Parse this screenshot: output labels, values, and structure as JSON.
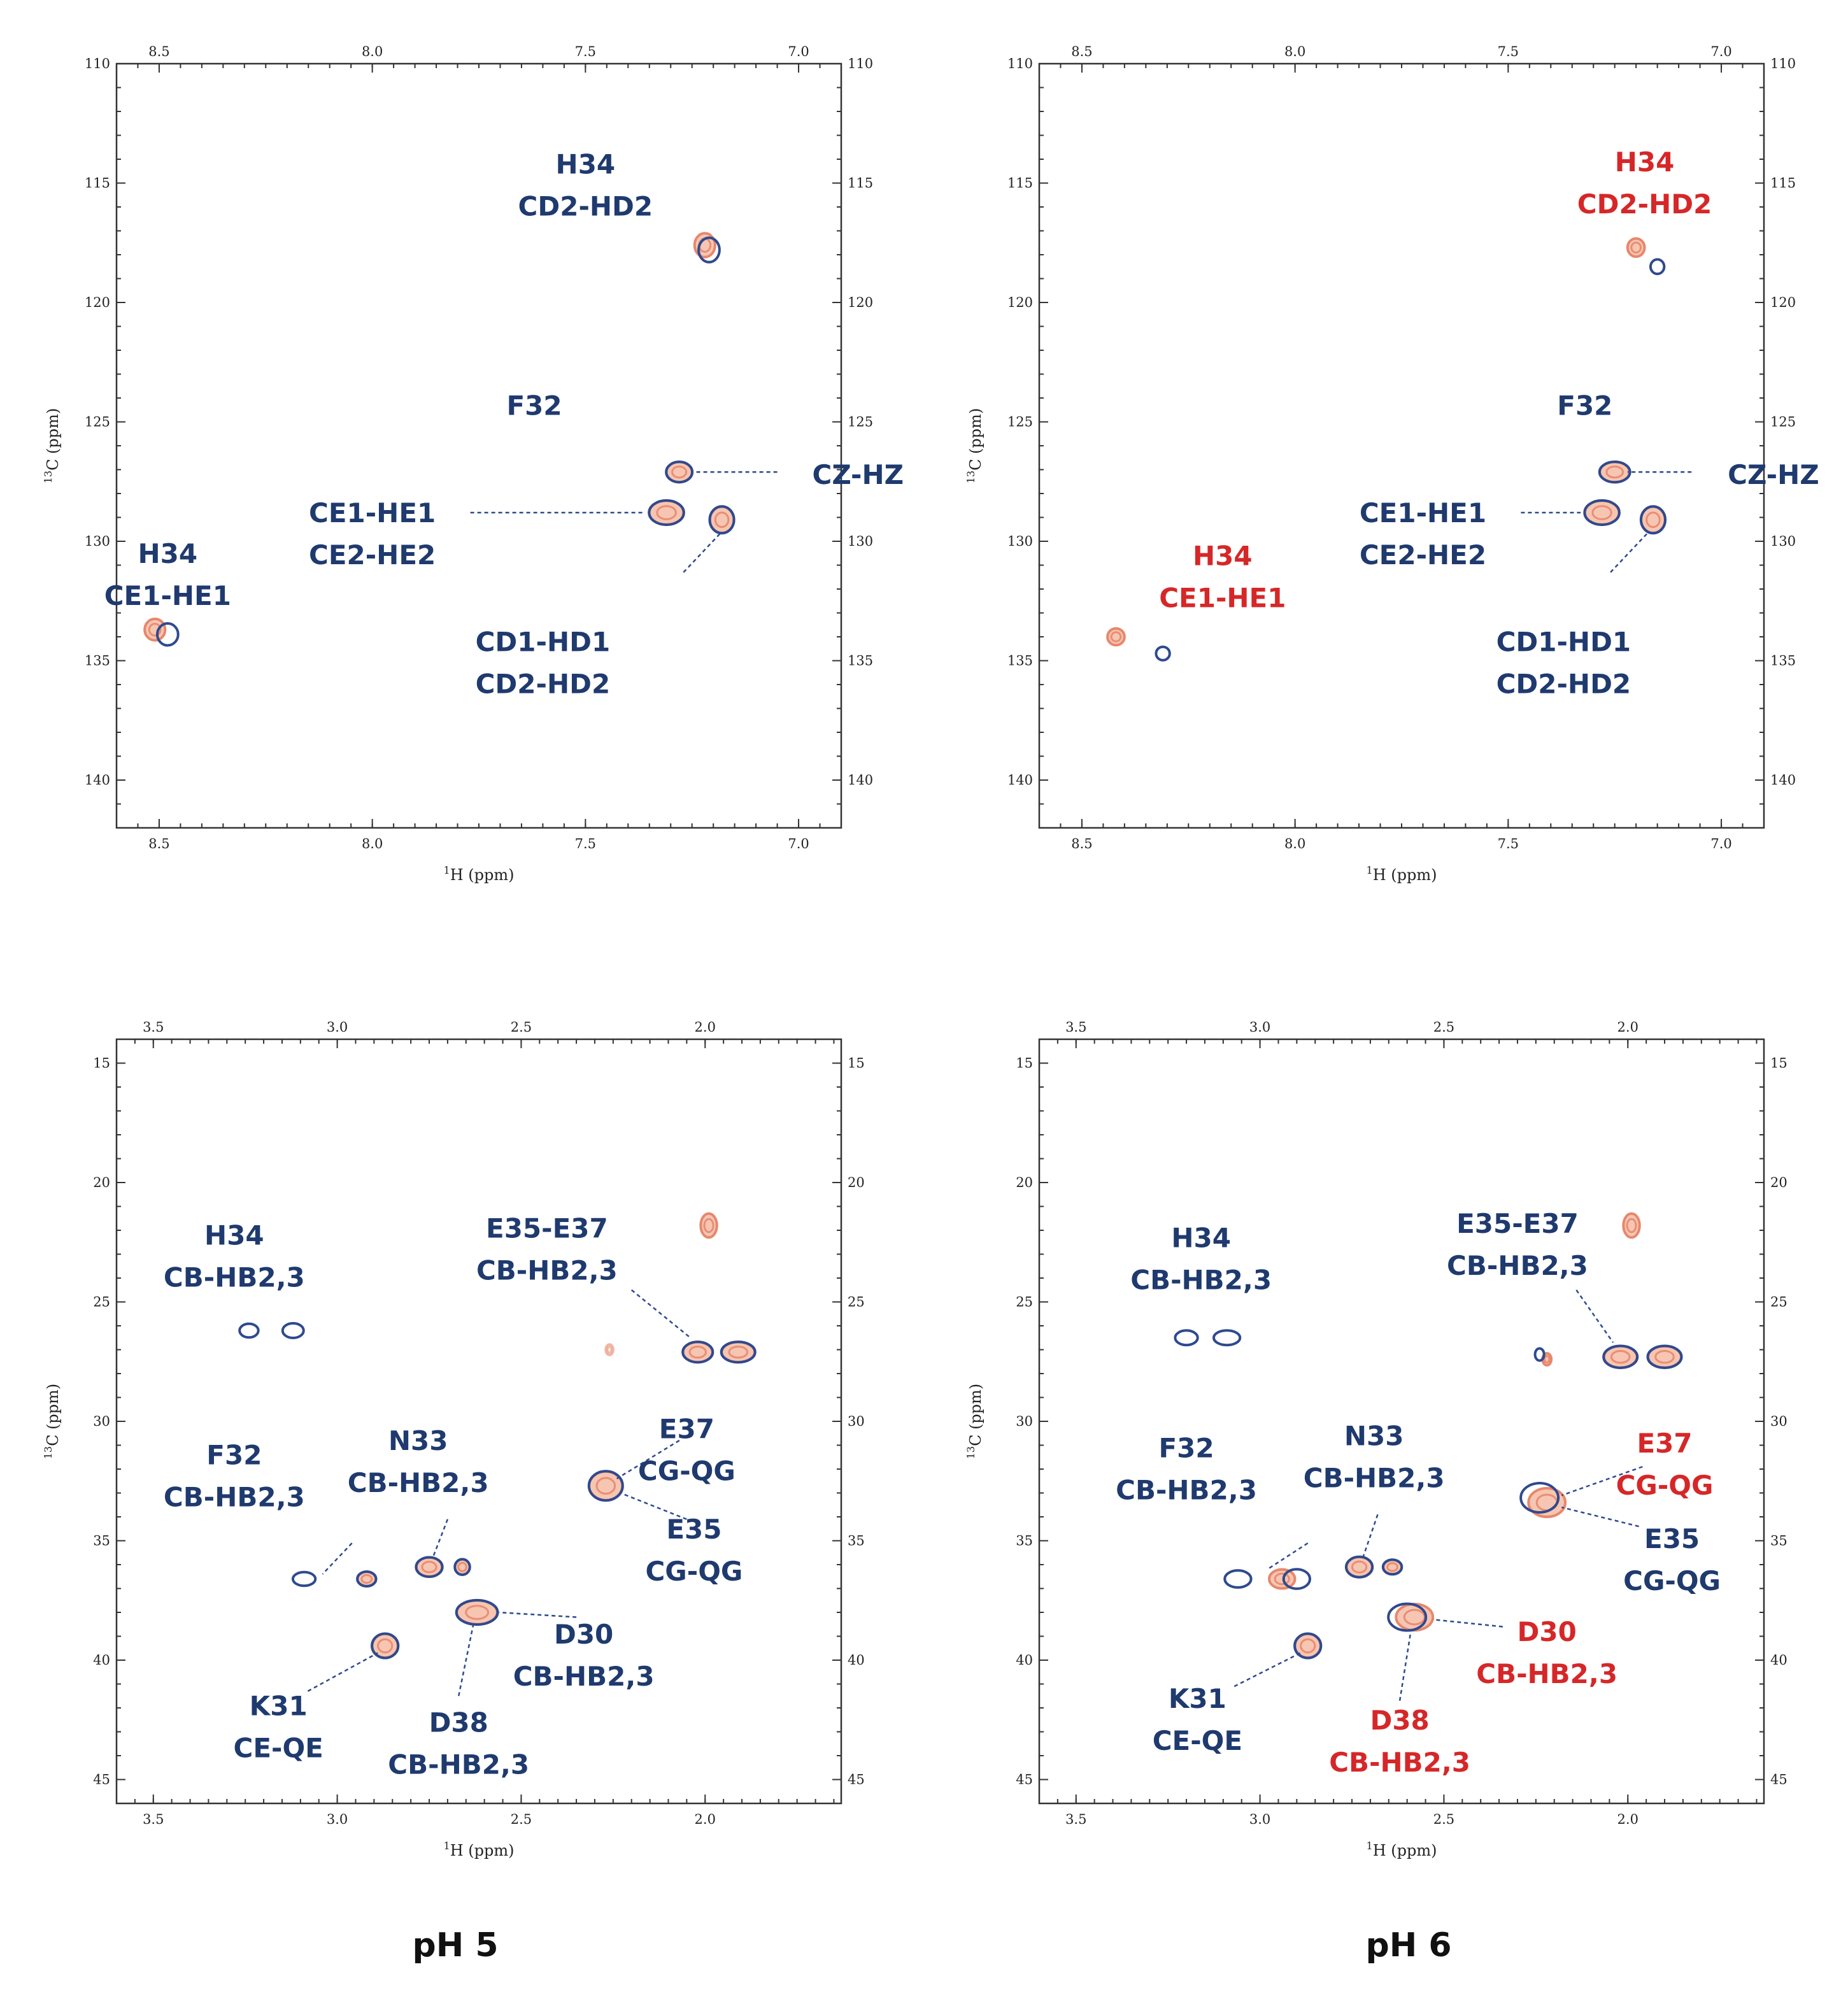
{
  "colors": {
    "ref": "#e8876b",
    "ref_fill": "#f6c6b3",
    "sample": "#2e4a8f",
    "label_default": "#1f3a6e",
    "label_changed": "#d62728",
    "leader": "#2e4a8f"
  },
  "figure_labels": {
    "ph5": "pH 5",
    "ph6": "pH 6"
  },
  "chart_data": [
    {
      "id": "aromatic_ph5",
      "type": "scatter",
      "subtype": "2D NMR HSQC overlay",
      "xlabel_sup": "1",
      "xlabel": "H  (ppm)",
      "ylabel_sup": "13",
      "ylabel": "C  (ppm)",
      "xlim": [
        8.6,
        6.9
      ],
      "ylim": [
        110,
        142
      ],
      "x_reversed": true,
      "y_reversed": true,
      "xticks": [
        8.5,
        8.0,
        7.5,
        7.0
      ],
      "xtick_labels": [
        "8.5",
        "8.0",
        "7.5",
        "7.0"
      ],
      "yticks": [
        110,
        115,
        120,
        125,
        130,
        135,
        140
      ],
      "ytick_labels": [
        "110",
        "115",
        "120",
        "125",
        "130",
        "135",
        "140"
      ],
      "peaks": [
        {
          "ref": [
            7.22,
            117.6
          ],
          "sample": [
            7.21,
            117.8
          ],
          "rx": 0.024,
          "ry": 0.5
        },
        {
          "ref": [
            7.28,
            127.1
          ],
          "sample": [
            7.28,
            127.1
          ],
          "rx": 0.03,
          "ry": 0.42
        },
        {
          "ref": [
            7.31,
            128.8
          ],
          "sample": [
            7.31,
            128.8
          ],
          "rx": 0.04,
          "ry": 0.5
        },
        {
          "ref": [
            7.18,
            129.1
          ],
          "sample": [
            7.18,
            129.1
          ],
          "rx": 0.028,
          "ry": 0.55
        },
        {
          "ref": [
            8.51,
            133.7
          ],
          "sample": [
            8.48,
            133.9
          ],
          "rx": 0.024,
          "ry": 0.45
        }
      ],
      "annotations": [
        {
          "lines": [
            "H34",
            "CD2-HD2"
          ],
          "x": 7.5,
          "y": 114.6,
          "color": "label_default"
        },
        {
          "lines": [
            "F32"
          ],
          "x": 7.62,
          "y": 124.7,
          "color": "label_default"
        },
        {
          "lines": [
            "CZ-HZ"
          ],
          "x": 6.95,
          "y": 127.6,
          "color": "label_default",
          "anchor": "start",
          "dx": -12
        },
        {
          "lines": [
            "CE1-HE1",
            "CE2-HE2"
          ],
          "x": 8.0,
          "y": 129.2,
          "color": "label_default"
        },
        {
          "lines": [
            "H34",
            "CE1-HE1"
          ],
          "x": 8.48,
          "y": 130.9,
          "color": "label_default"
        },
        {
          "lines": [
            "CD1-HD1",
            "CD2-HD2"
          ],
          "x": 7.6,
          "y": 134.6,
          "color": "label_default"
        }
      ],
      "leaders": [
        {
          "from": [
            7.05,
            127.1
          ],
          "to": [
            7.25,
            127.1
          ]
        },
        {
          "from": [
            7.77,
            128.8
          ],
          "to": [
            7.36,
            128.8
          ]
        },
        {
          "from": [
            7.27,
            131.3
          ],
          "to": [
            7.18,
            129.6
          ]
        }
      ]
    },
    {
      "id": "aromatic_ph6",
      "type": "scatter",
      "subtype": "2D NMR HSQC overlay",
      "xlabel_sup": "1",
      "xlabel": "H  (ppm)",
      "ylabel_sup": "13",
      "ylabel": "C  (ppm)",
      "xlim": [
        8.6,
        6.9
      ],
      "ylim": [
        110,
        142
      ],
      "x_reversed": true,
      "y_reversed": true,
      "xticks": [
        8.5,
        8.0,
        7.5,
        7.0
      ],
      "xtick_labels": [
        "8.5",
        "8.0",
        "7.5",
        "7.0"
      ],
      "yticks": [
        110,
        115,
        120,
        125,
        130,
        135,
        140
      ],
      "ytick_labels": [
        "110",
        "115",
        "120",
        "125",
        "130",
        "135",
        "140"
      ],
      "peaks": [
        {
          "ref": [
            7.2,
            117.7
          ],
          "sample": [
            7.15,
            118.5
          ],
          "rx": 0.02,
          "ry": 0.38,
          "ref_only_fill": true
        },
        {
          "ref": [
            7.25,
            127.1
          ],
          "sample": [
            7.25,
            127.1
          ],
          "rx": 0.035,
          "ry": 0.42
        },
        {
          "ref": [
            7.28,
            128.8
          ],
          "sample": [
            7.28,
            128.8
          ],
          "rx": 0.04,
          "ry": 0.5
        },
        {
          "ref": [
            7.16,
            129.1
          ],
          "sample": [
            7.16,
            129.1
          ],
          "rx": 0.028,
          "ry": 0.55
        },
        {
          "ref": [
            8.42,
            134.0
          ],
          "sample": [
            8.31,
            134.7
          ],
          "rx": 0.02,
          "ry": 0.35,
          "ref_only_fill": true
        }
      ],
      "annotations": [
        {
          "lines": [
            "H34",
            "CD2-HD2"
          ],
          "x": 7.18,
          "y": 114.5,
          "color": "label_changed"
        },
        {
          "lines": [
            "F32"
          ],
          "x": 7.32,
          "y": 124.7,
          "color": "label_default"
        },
        {
          "lines": [
            "CZ-HZ"
          ],
          "x": 6.97,
          "y": 127.6,
          "color": "label_default",
          "anchor": "start",
          "dx": -10
        },
        {
          "lines": [
            "CE1-HE1",
            "CE2-HE2"
          ],
          "x": 7.7,
          "y": 129.2,
          "color": "label_default"
        },
        {
          "lines": [
            "H34",
            "CE1-HE1"
          ],
          "x": 8.17,
          "y": 131.0,
          "color": "label_changed"
        },
        {
          "lines": [
            "CD1-HD1",
            "CD2-HD2"
          ],
          "x": 7.37,
          "y": 134.6,
          "color": "label_default"
        }
      ],
      "leaders": [
        {
          "from": [
            7.07,
            127.1
          ],
          "to": [
            7.22,
            127.1
          ]
        },
        {
          "from": [
            7.47,
            128.8
          ],
          "to": [
            7.33,
            128.8
          ]
        },
        {
          "from": [
            7.26,
            131.3
          ],
          "to": [
            7.17,
            129.6
          ]
        }
      ]
    },
    {
      "id": "aliphatic_ph5",
      "type": "scatter",
      "subtype": "2D NMR HSQC overlay",
      "xlabel_sup": "1",
      "xlabel": "H  (ppm)",
      "ylabel_sup": "13",
      "ylabel": "C  (ppm)",
      "xlim": [
        3.6,
        1.63
      ],
      "ylim": [
        14,
        46
      ],
      "x_reversed": true,
      "y_reversed": true,
      "xticks": [
        3.5,
        3.0,
        2.5,
        2.0
      ],
      "xtick_labels": [
        "3.5",
        "3.0",
        "2.5",
        "2.0"
      ],
      "yticks": [
        15,
        20,
        25,
        30,
        35,
        40,
        45
      ],
      "ytick_labels": [
        "15",
        "20",
        "25",
        "30",
        "35",
        "40",
        "45"
      ],
      "peaks": [
        {
          "ref": [
            1.99,
            21.8
          ],
          "sample": [
            1.99,
            21.8
          ],
          "rx": 0.022,
          "ry": 0.5,
          "ref_only": true
        },
        {
          "ref": [
            2.02,
            27.1
          ],
          "sample": [
            2.02,
            27.1
          ],
          "rx": 0.04,
          "ry": 0.42
        },
        {
          "ref": [
            1.91,
            27.1
          ],
          "sample": [
            1.91,
            27.1
          ],
          "rx": 0.045,
          "ry": 0.42
        },
        {
          "ref": [
            2.26,
            27.0
          ],
          "sample": [
            2.26,
            27.0
          ],
          "rx": 0.01,
          "ry": 0.22,
          "ref_only": true,
          "faint": true
        },
        {
          "ref": [
            3.24,
            26.2
          ],
          "sample": [
            3.24,
            26.2
          ],
          "rx": 0.025,
          "ry": 0.28,
          "sample_only": true
        },
        {
          "ref": [
            3.12,
            26.2
          ],
          "sample": [
            3.12,
            26.2
          ],
          "rx": 0.028,
          "ry": 0.3,
          "sample_only": true
        },
        {
          "ref": [
            2.27,
            32.7
          ],
          "sample": [
            2.27,
            32.7
          ],
          "rx": 0.045,
          "ry": 0.6
        },
        {
          "ref": [
            2.75,
            36.1
          ],
          "sample": [
            2.75,
            36.1
          ],
          "rx": 0.035,
          "ry": 0.4
        },
        {
          "ref": [
            2.66,
            36.1
          ],
          "sample": [
            2.66,
            36.1
          ],
          "rx": 0.02,
          "ry": 0.32
        },
        {
          "ref": [
            3.09,
            36.6
          ],
          "sample": [
            3.09,
            36.6
          ],
          "rx": 0.03,
          "ry": 0.28,
          "sample_only": true
        },
        {
          "ref": [
            2.92,
            36.6
          ],
          "sample": [
            2.92,
            36.6
          ],
          "rx": 0.025,
          "ry": 0.3
        },
        {
          "ref": [
            2.62,
            38.0
          ],
          "sample": [
            2.62,
            38.0
          ],
          "rx": 0.055,
          "ry": 0.5
        },
        {
          "ref": [
            2.87,
            39.4
          ],
          "sample": [
            2.87,
            39.4
          ],
          "rx": 0.035,
          "ry": 0.5
        }
      ],
      "annotations": [
        {
          "lines": [
            "H34",
            "CB-HB2,3"
          ],
          "x": 3.28,
          "y": 22.6,
          "color": "label_default"
        },
        {
          "lines": [
            "E35-E37",
            "CB-HB2,3"
          ],
          "x": 2.43,
          "y": 22.3,
          "color": "label_default"
        },
        {
          "lines": [
            "E37",
            "CG-QG"
          ],
          "x": 2.05,
          "y": 30.7,
          "color": "label_default"
        },
        {
          "lines": [
            "F32",
            "CB-HB2,3"
          ],
          "x": 3.28,
          "y": 31.8,
          "color": "label_default"
        },
        {
          "lines": [
            "N33",
            "CB-HB2,3"
          ],
          "x": 2.78,
          "y": 31.2,
          "color": "label_default"
        },
        {
          "lines": [
            "E35",
            "CG-QG"
          ],
          "x": 2.03,
          "y": 34.9,
          "color": "label_default"
        },
        {
          "lines": [
            "D30",
            "CB-HB2,3"
          ],
          "x": 2.33,
          "y": 39.3,
          "color": "label_default"
        },
        {
          "lines": [
            "K31",
            "CE-QE"
          ],
          "x": 3.16,
          "y": 42.3,
          "color": "label_default"
        },
        {
          "lines": [
            "D38",
            "CB-HB2,3"
          ],
          "x": 2.67,
          "y": 43.0,
          "color": "label_default"
        }
      ],
      "leaders": [
        {
          "from": [
            2.2,
            24.5
          ],
          "to": [
            2.04,
            26.5
          ]
        },
        {
          "from": [
            2.07,
            30.8
          ],
          "to": [
            2.24,
            32.4
          ]
        },
        {
          "from": [
            2.05,
            34.1
          ],
          "to": [
            2.23,
            33.0
          ]
        },
        {
          "from": [
            2.96,
            35.1
          ],
          "to": [
            3.04,
            36.4
          ]
        },
        {
          "from": [
            2.7,
            34.1
          ],
          "to": [
            2.74,
            35.7
          ]
        },
        {
          "from": [
            2.35,
            38.2
          ],
          "to": [
            2.56,
            38.0
          ]
        },
        {
          "from": [
            3.08,
            41.3
          ],
          "to": [
            2.89,
            39.7
          ]
        },
        {
          "from": [
            2.67,
            41.5
          ],
          "to": [
            2.63,
            38.5
          ]
        }
      ]
    },
    {
      "id": "aliphatic_ph6",
      "type": "scatter",
      "subtype": "2D NMR HSQC overlay",
      "xlabel_sup": "1",
      "xlabel": "H  (ppm)",
      "ylabel_sup": "13",
      "ylabel": "C  (ppm)",
      "xlim": [
        3.6,
        1.63
      ],
      "ylim": [
        14,
        46
      ],
      "x_reversed": true,
      "y_reversed": true,
      "xticks": [
        3.5,
        3.0,
        2.5,
        2.0
      ],
      "xtick_labels": [
        "3.5",
        "3.0",
        "2.5",
        "2.0"
      ],
      "yticks": [
        15,
        20,
        25,
        30,
        35,
        40,
        45
      ],
      "ytick_labels": [
        "15",
        "20",
        "25",
        "30",
        "35",
        "40",
        "45"
      ],
      "peaks": [
        {
          "ref": [
            1.99,
            21.8
          ],
          "sample": [
            1.99,
            21.8
          ],
          "rx": 0.022,
          "ry": 0.5,
          "ref_only": true
        },
        {
          "ref": [
            2.02,
            27.3
          ],
          "sample": [
            2.02,
            27.3
          ],
          "rx": 0.045,
          "ry": 0.45
        },
        {
          "ref": [
            1.9,
            27.3
          ],
          "sample": [
            1.9,
            27.3
          ],
          "rx": 0.045,
          "ry": 0.45
        },
        {
          "ref": [
            2.22,
            27.4
          ],
          "sample": [
            2.24,
            27.2
          ],
          "rx": 0.012,
          "ry": 0.25
        },
        {
          "ref": [
            3.2,
            26.5
          ],
          "sample": [
            3.2,
            26.5
          ],
          "rx": 0.03,
          "ry": 0.3,
          "sample_only": true
        },
        {
          "ref": [
            3.09,
            26.5
          ],
          "sample": [
            3.09,
            26.5
          ],
          "rx": 0.035,
          "ry": 0.3,
          "sample_only": true
        },
        {
          "ref": [
            2.22,
            33.4
          ],
          "sample": [
            2.24,
            33.2
          ],
          "rx": 0.05,
          "ry": 0.6
        },
        {
          "ref": [
            2.73,
            36.1
          ],
          "sample": [
            2.73,
            36.1
          ],
          "rx": 0.035,
          "ry": 0.42
        },
        {
          "ref": [
            2.64,
            36.1
          ],
          "sample": [
            2.64,
            36.1
          ],
          "rx": 0.025,
          "ry": 0.3
        },
        {
          "ref": [
            3.06,
            36.6
          ],
          "sample": [
            3.06,
            36.6
          ],
          "rx": 0.035,
          "ry": 0.35,
          "sample_only": true
        },
        {
          "ref": [
            2.94,
            36.6
          ],
          "sample": [
            2.9,
            36.6
          ],
          "rx": 0.035,
          "ry": 0.4
        },
        {
          "ref": [
            2.58,
            38.2
          ],
          "sample": [
            2.6,
            38.2
          ],
          "rx": 0.05,
          "ry": 0.55
        },
        {
          "ref": [
            2.87,
            39.4
          ],
          "sample": [
            2.87,
            39.4
          ],
          "rx": 0.035,
          "ry": 0.5
        }
      ],
      "annotations": [
        {
          "lines": [
            "H34",
            "CB-HB2,3"
          ],
          "x": 3.16,
          "y": 22.7,
          "color": "label_default"
        },
        {
          "lines": [
            "E35-E37",
            "CB-HB2,3"
          ],
          "x": 2.3,
          "y": 22.1,
          "color": "label_default"
        },
        {
          "lines": [
            "E37",
            "CG-QG"
          ],
          "x": 1.9,
          "y": 31.3,
          "color": "label_changed"
        },
        {
          "lines": [
            "F32",
            "CB-HB2,3"
          ],
          "x": 3.2,
          "y": 31.5,
          "color": "label_default"
        },
        {
          "lines": [
            "N33",
            "CB-HB2,3"
          ],
          "x": 2.69,
          "y": 31.0,
          "color": "label_default"
        },
        {
          "lines": [
            "E35",
            "CG-QG"
          ],
          "x": 1.88,
          "y": 35.3,
          "color": "label_default"
        },
        {
          "lines": [
            "D30",
            "CB-HB2,3"
          ],
          "x": 2.22,
          "y": 39.2,
          "color": "label_changed"
        },
        {
          "lines": [
            "K31",
            "CE-QE"
          ],
          "x": 3.17,
          "y": 42.0,
          "color": "label_default"
        },
        {
          "lines": [
            "D38",
            "CB-HB2,3"
          ],
          "x": 2.62,
          "y": 42.9,
          "color": "label_changed"
        }
      ],
      "leaders": [
        {
          "from": [
            2.14,
            24.5
          ],
          "to": [
            2.04,
            26.7
          ]
        },
        {
          "from": [
            1.96,
            31.9
          ],
          "to": [
            2.18,
            33.1
          ]
        },
        {
          "from": [
            1.97,
            34.4
          ],
          "to": [
            2.18,
            33.6
          ]
        },
        {
          "from": [
            2.87,
            35.1
          ],
          "to": [
            2.98,
            36.2
          ]
        },
        {
          "from": [
            2.68,
            33.9
          ],
          "to": [
            2.72,
            35.7
          ]
        },
        {
          "from": [
            2.34,
            38.6
          ],
          "to": [
            2.53,
            38.3
          ]
        },
        {
          "from": [
            3.07,
            41.1
          ],
          "to": [
            2.89,
            39.7
          ]
        },
        {
          "from": [
            2.62,
            41.7
          ],
          "to": [
            2.59,
            38.8
          ]
        }
      ]
    }
  ]
}
